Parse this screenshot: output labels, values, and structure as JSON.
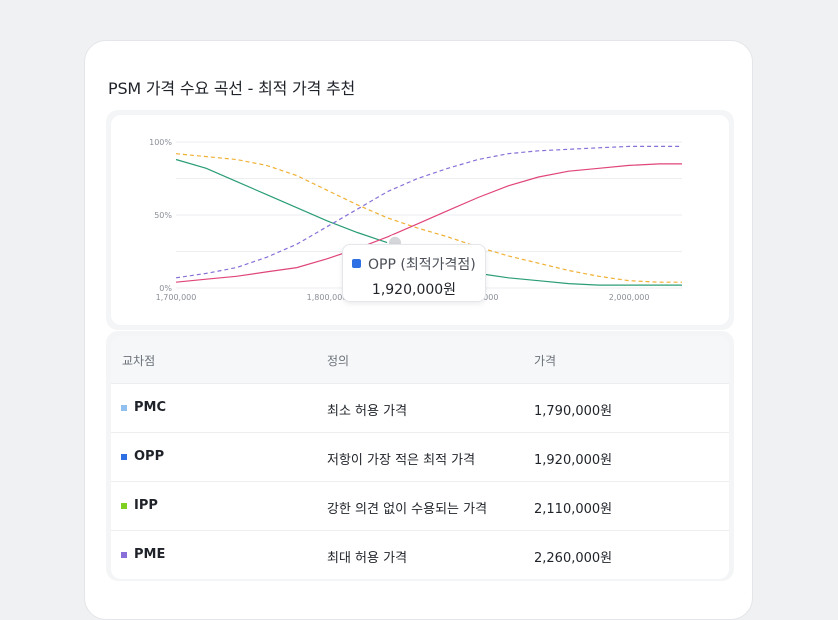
{
  "title": "PSM 가격 수요 곡선 - 최적 가격 추천",
  "tooltip": {
    "label": "OPP (최적가격점)",
    "value": "1,920,000원",
    "color": "#2f6fe4"
  },
  "table": {
    "headers": [
      "교차점",
      "정의",
      "가격"
    ],
    "rows": [
      {
        "name": "PMC",
        "definition": "최소 허용 가격",
        "price": "1,790,000원",
        "color": "#8fc0f0"
      },
      {
        "name": "OPP",
        "definition": "저항이 가장 적은 최적 가격",
        "price": "1,920,000원",
        "color": "#2f6fe4"
      },
      {
        "name": "IPP",
        "definition": "강한 의견 없이 수용되는 가격",
        "price": "2,110,000원",
        "color": "#7ecf1f"
      },
      {
        "name": "PME",
        "definition": "최대 허용 가격",
        "price": "2,260,000원",
        "color": "#8870d8"
      }
    ]
  },
  "chart_data": {
    "type": "line",
    "x_ticks": [
      1700000,
      1800000,
      1900000,
      2000000
    ],
    "x_tick_labels": [
      "1,700,000",
      "1,800,000",
      "1,900,000",
      "2,000,000"
    ],
    "y_ticks": [
      0,
      50,
      100
    ],
    "y_tick_labels": [
      "0%",
      "50%",
      "100%"
    ],
    "xlim": [
      1700000,
      2035000
    ],
    "ylim": [
      0,
      100
    ],
    "grid": true,
    "series": [
      {
        "color": "#f0b033",
        "dashed": true,
        "x": [
          1700000,
          1720000,
          1740000,
          1760000,
          1780000,
          1800000,
          1820000,
          1840000,
          1860000,
          1880000,
          1900000,
          1920000,
          1940000,
          1960000,
          1980000,
          2000000,
          2020000,
          2035000
        ],
        "y": [
          92,
          90,
          88,
          84,
          77,
          67,
          57,
          48,
          41,
          35,
          28,
          22,
          17,
          12,
          8,
          5,
          4,
          4
        ]
      },
      {
        "color": "#2a9d76",
        "dashed": false,
        "x": [
          1700000,
          1720000,
          1740000,
          1760000,
          1780000,
          1800000,
          1820000,
          1840000,
          1860000,
          1880000,
          1900000,
          1920000,
          1940000,
          1960000,
          1980000,
          2000000,
          2020000,
          2035000
        ],
        "y": [
          88,
          82,
          73,
          64,
          55,
          46,
          38,
          31,
          23,
          15,
          10,
          7,
          5,
          3,
          2,
          2,
          2,
          2
        ]
      },
      {
        "color": "#8870d8",
        "dashed": true,
        "x": [
          1700000,
          1720000,
          1740000,
          1760000,
          1780000,
          1800000,
          1820000,
          1840000,
          1860000,
          1880000,
          1900000,
          1920000,
          1940000,
          1960000,
          1980000,
          2000000,
          2020000,
          2035000
        ],
        "y": [
          7,
          10,
          14,
          21,
          30,
          42,
          54,
          66,
          75,
          82,
          88,
          92,
          94,
          95,
          96,
          97,
          97,
          97
        ]
      },
      {
        "color": "#e0457a",
        "dashed": false,
        "x": [
          1700000,
          1720000,
          1740000,
          1760000,
          1780000,
          1800000,
          1820000,
          1840000,
          1860000,
          1880000,
          1900000,
          1920000,
          1940000,
          1960000,
          1980000,
          2000000,
          2020000,
          2035000
        ],
        "y": [
          4,
          6,
          8,
          11,
          14,
          20,
          27,
          35,
          44,
          53,
          62,
          70,
          76,
          80,
          82,
          84,
          85,
          85
        ]
      }
    ],
    "highlight": {
      "x": 1845000,
      "y": 31
    }
  }
}
